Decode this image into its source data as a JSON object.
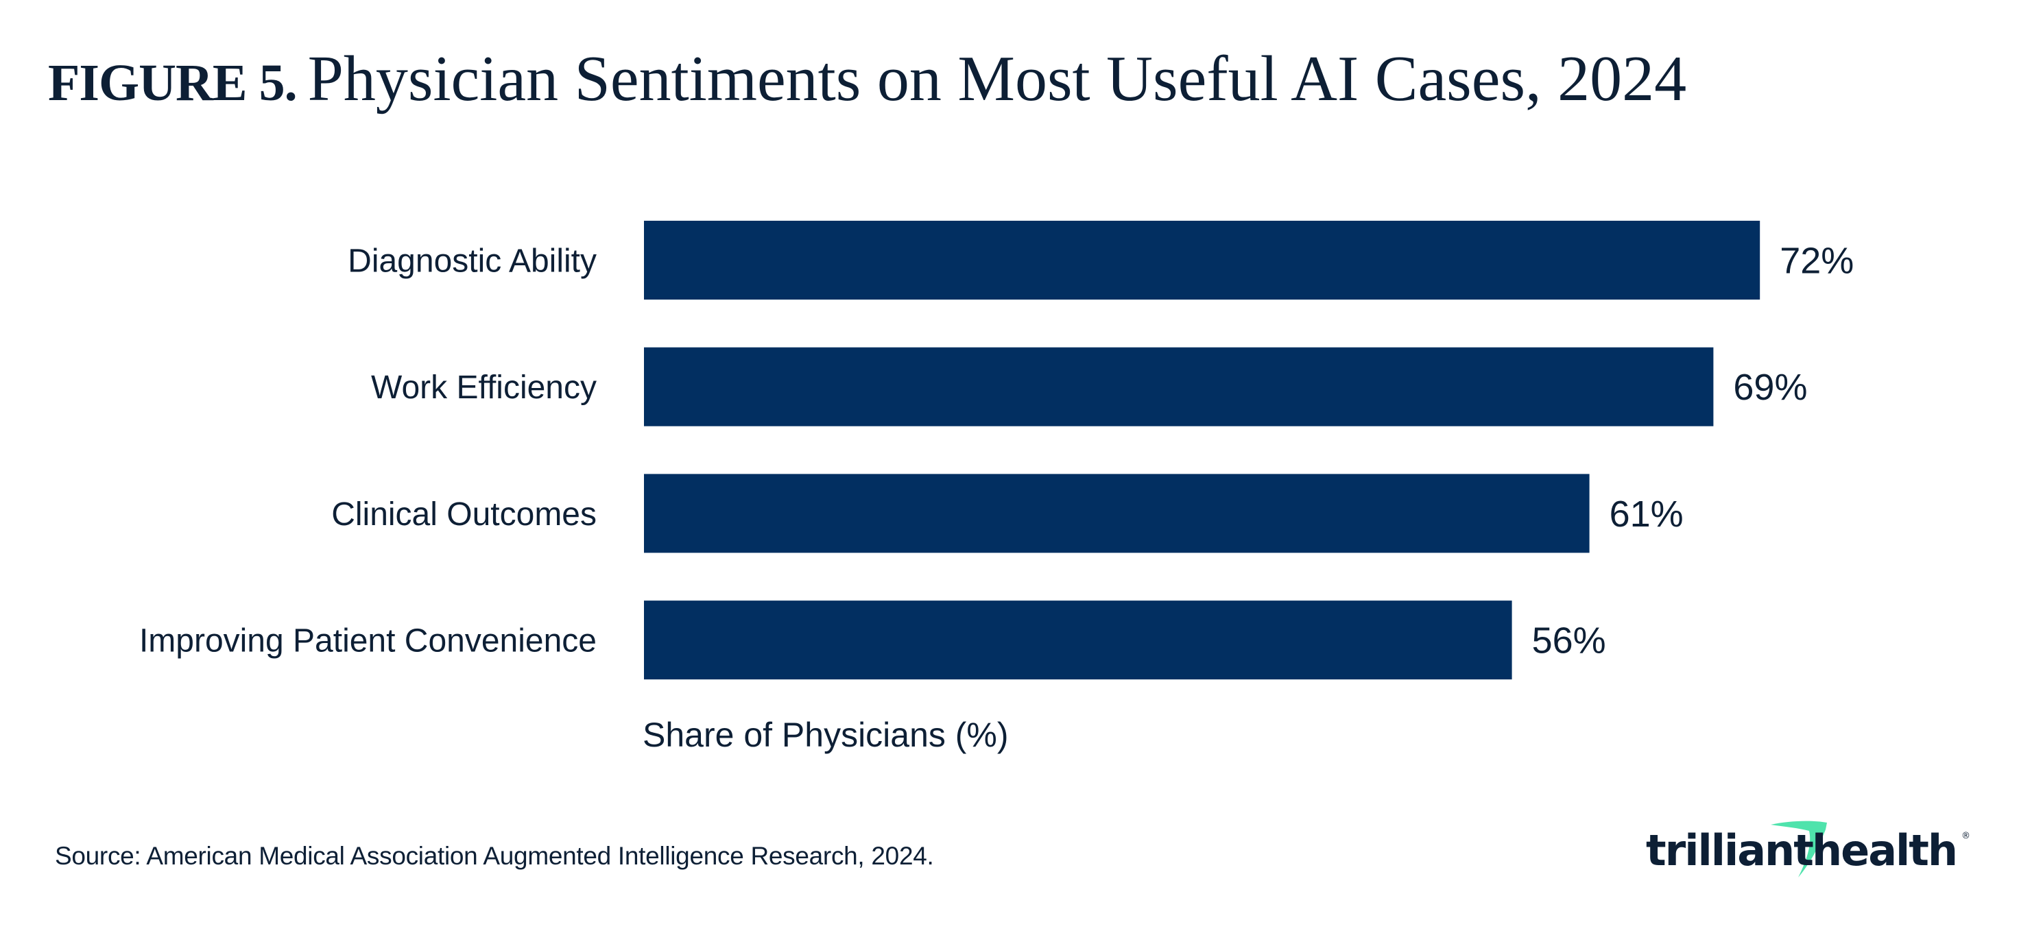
{
  "header": {
    "figure_label": "FIGURE 5.",
    "title": "Physician Sentiments on Most Useful AI Cases, 2024"
  },
  "chart_data": {
    "type": "bar",
    "orientation": "horizontal",
    "title": "Physician Sentiments on Most Useful AI Cases, 2024",
    "categories": [
      "Diagnostic Ability",
      "Work Efficiency",
      "Clinical Outcomes",
      "Improving Patient Convenience"
    ],
    "values": [
      72,
      69,
      61,
      56
    ],
    "value_labels": [
      "72%",
      "69%",
      "61%",
      "56%"
    ],
    "xlabel": "Share of Physicians (%)",
    "ylabel": "",
    "xlim": [
      0,
      100
    ],
    "grid": false,
    "legend": "none",
    "bar_color": "#022f61"
  },
  "footer": {
    "source": "Source: American Medical Association Augmented Intelligence Research, 2024.",
    "logo_text_left": "trilliant",
    "logo_text_right": "health",
    "logo_reg_mark": "®",
    "logo_accent_color": "#4fe3ac"
  }
}
